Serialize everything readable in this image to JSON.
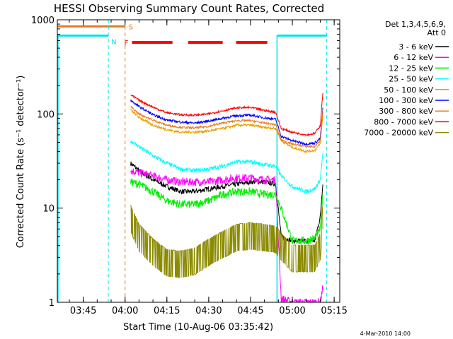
{
  "chart_data": {
    "type": "line",
    "title": "HESSI Observing Summary Count Rates, Corrected",
    "xlabel": "Start Time (10-Aug-06 03:35:42)",
    "ylabel": "Corrected Count Rate (s⁻¹ detector⁻¹)",
    "y_scale": "log",
    "ylim": [
      1,
      1000
    ],
    "xlim": [
      "03:35:42",
      "05:17:00"
    ],
    "x_ticks": [
      "03:45",
      "04:00",
      "04:15",
      "04:30",
      "04:45",
      "05:00",
      "05:15"
    ],
    "y_ticks": [
      "1",
      "10",
      "100",
      "1000"
    ],
    "date_stamp": "4-Mar-2010 14:00",
    "legend": {
      "placement": "right",
      "header": [
        "Det 1,3,4,5,6,9,",
        "Att 0"
      ]
    },
    "flag_labels": {
      "saa": "S",
      "night": "N",
      "flare": "F"
    },
    "flags": {
      "saa": {
        "intervals": [
          [
            "03:35:42",
            "04:00:00"
          ]
        ],
        "level": 850,
        "color": "#e87a1e"
      },
      "night": {
        "intervals": [
          [
            "03:35:42",
            "03:54:00"
          ],
          [
            "04:54:30",
            "05:12:20"
          ]
        ],
        "level": 680,
        "color": "#00e5ee"
      },
      "flare": {
        "intervals": [
          [
            "04:02:30",
            "04:17:00"
          ],
          [
            "04:22:40",
            "04:35:00"
          ],
          [
            "04:39:50",
            "04:51:00"
          ]
        ],
        "level": 575,
        "color": "#ff0000"
      }
    },
    "vlines": [
      {
        "time": "03:54:00",
        "color": "#00e5ee"
      },
      {
        "time": "04:00:00",
        "color": "#e87a1e"
      },
      {
        "time": "05:12:20",
        "color": "#00e5ee"
      }
    ],
    "solid_vlines": [
      {
        "time": "04:54:30",
        "color": "#00e5ee"
      }
    ],
    "x": [
      "04:02",
      "04:05",
      "04:10",
      "04:15",
      "04:20",
      "04:25",
      "04:30",
      "04:35",
      "04:40",
      "04:45",
      "04:50",
      "04:54",
      "04:56",
      "05:00",
      "05:05",
      "05:08",
      "05:10",
      "05:11"
    ],
    "series": [
      {
        "name": "3 - 6 keV",
        "color": "#000000",
        "values": [
          30,
          25,
          20,
          17,
          15,
          15,
          16,
          17,
          18,
          19,
          19,
          18,
          5,
          4.5,
          4.5,
          4.5,
          8,
          20
        ]
      },
      {
        "name": "6 - 12 keV",
        "color": "#ff00ff",
        "values": [
          25,
          24,
          22,
          20,
          19,
          19,
          19,
          20,
          21,
          21,
          20,
          20,
          1.1,
          1.0,
          1.0,
          1.0,
          1.0,
          1.5
        ]
      },
      {
        "name": "12 - 25 keV",
        "color": "#00ee00",
        "values": [
          19,
          18,
          15,
          12,
          11,
          11,
          12,
          14,
          15,
          15,
          14,
          14,
          10,
          4.5,
          4.5,
          4.8,
          6,
          15
        ]
      },
      {
        "name": "25 - 50 keV",
        "color": "#00ffff",
        "values": [
          52,
          45,
          36,
          30,
          26,
          25,
          26,
          28,
          31,
          31,
          29,
          28,
          22,
          17,
          15,
          16,
          20,
          40
        ]
      },
      {
        "name": "50 - 100 keV",
        "color": "#e8a000",
        "values": [
          110,
          92,
          76,
          68,
          64,
          64,
          66,
          70,
          76,
          76,
          72,
          70,
          52,
          44,
          40,
          41,
          48,
          100
        ]
      },
      {
        "name": "100 - 300 keV",
        "color": "#0000ff",
        "values": [
          140,
          120,
          98,
          86,
          82,
          80,
          84,
          90,
          96,
          97,
          91,
          88,
          58,
          52,
          48,
          49,
          55,
          120
        ]
      },
      {
        "name": "300 - 800 keV",
        "color": "#e87a1e",
        "values": [
          120,
          100,
          86,
          76,
          72,
          71,
          74,
          80,
          85,
          85,
          80,
          77,
          53,
          48,
          45,
          45,
          52,
          115
        ]
      },
      {
        "name": "800 - 7000 keV",
        "color": "#ff0000",
        "values": [
          160,
          140,
          118,
          103,
          98,
          97,
          100,
          108,
          116,
          117,
          109,
          104,
          70,
          64,
          60,
          62,
          75,
          180
        ]
      },
      {
        "name": "7000 - 20000 keV",
        "color": "#8b8b00",
        "values": [
          8,
          5,
          3.5,
          2.7,
          2.6,
          2.8,
          3.5,
          4.2,
          5.0,
          5.2,
          5.0,
          4.8,
          4.0,
          3.0,
          3.0,
          3.0,
          4,
          9
        ]
      }
    ]
  }
}
